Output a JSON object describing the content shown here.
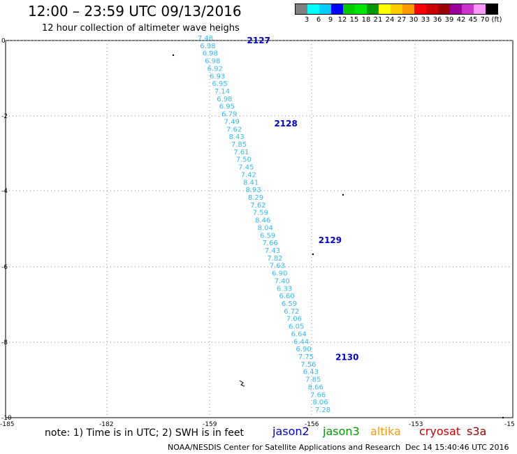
{
  "title": "12:00 – 23:59 UTC 09/13/2016",
  "subtitle": "12 hour collection of altimeter wave heighs",
  "legend": {
    "colors": [
      "#808080",
      "#00ffff",
      "#00ccff",
      "#0000ff",
      "#00cc00",
      "#00e600",
      "#009900",
      "#ffff00",
      "#ffcc00",
      "#ff9900",
      "#ff0000",
      "#cc0000",
      "#990000",
      "#990099",
      "#cc33cc",
      "#ff99ff",
      "#000000"
    ],
    "labels": [
      "3",
      "6",
      "9",
      "12",
      "15",
      "18",
      "21",
      "24",
      "27",
      "30",
      "33",
      "36",
      "39",
      "42",
      "45",
      "70",
      "(ft)"
    ]
  },
  "axes": {
    "y_ticks": [
      "0",
      "-2",
      "-4",
      "-6",
      "-8",
      "-10"
    ],
    "x_ticks": [
      "-185",
      "-182",
      "-159",
      "-156",
      "-153",
      "-15"
    ]
  },
  "track": {
    "color": "#33bbee",
    "values": [
      "7.48",
      "6.98",
      "6.98",
      "6.98",
      "6.92",
      "6.93",
      "6.95",
      "7.14",
      "6.98",
      "6.95",
      "6.79",
      "7.49",
      "7.62",
      "8.43",
      "7.85",
      "7.61",
      "7.50",
      "7.45",
      "7.42",
      "8.41",
      "8.93",
      "8.29",
      "7.62",
      "7.59",
      "8.46",
      "8.04",
      "6.59",
      "7.66",
      "7.43",
      "7.82",
      "7.63",
      "6.90",
      "7.40",
      "6.33",
      "6.60",
      "6.59",
      "6.72",
      "7.06",
      "6.05",
      "6.64",
      "6.44",
      "6.90",
      "7.75",
      "7.56",
      "6.43",
      "7.85",
      "8.66",
      "7.66",
      "8.06",
      "7.28"
    ]
  },
  "pass_labels": [
    {
      "text": "2127",
      "lon": -157.9,
      "lat": 0.0
    },
    {
      "text": "2128",
      "lon": -157.1,
      "lat": -2.2
    },
    {
      "text": "2129",
      "lon": -155.8,
      "lat": -5.3
    },
    {
      "text": "2130",
      "lon": -155.3,
      "lat": -8.4
    }
  ],
  "footer": {
    "note": "note:  1) Time is in UTC; 2) SWH is in feet",
    "satellites": [
      {
        "name": "jason2",
        "color": "#0000cc"
      },
      {
        "name": "jason3",
        "color": "#009900"
      },
      {
        "name": "altika",
        "color": "#ff9900"
      },
      {
        "name": "cryosat",
        "color": "#cc0000"
      },
      {
        "name": "s3a",
        "color": "#990000"
      }
    ],
    "credit": "NOAA/NESDIS Center for Satellite Applications and Research",
    "timestamp": "Dec 14 15:40:46 UTC 2016"
  }
}
